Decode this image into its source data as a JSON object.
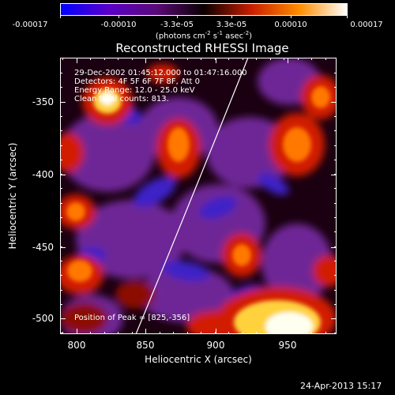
{
  "colorbar": {
    "tick_labels": [
      "-0.00017",
      "-0.00010",
      "-3.3e-05",
      "3.3e-05",
      "0.00010",
      "0.00017"
    ],
    "units_prefix": "(photons cm",
    "units_exp1": "-2",
    "units_mid1": " s",
    "units_exp2": "-1",
    "units_mid2": " asec",
    "units_exp3": "-2",
    "units_suffix": ")",
    "colors": [
      "#0000ff",
      "#5a00c8",
      "#5a0a78",
      "#0a0000",
      "#c81e00",
      "#ff8c00",
      "#ffffff"
    ]
  },
  "plot": {
    "title": "Reconstructed RHESSI Image",
    "info_lines": [
      "29-Dec-2002 01:45:12.000 to 01:47:16.000",
      "Detectors: 4F 5F 6F 7F 8F, Att 0",
      "Energy Range: 12.0 - 25.0 keV",
      "Clean      total counts: 813."
    ],
    "peak_label": "Position of Peak = [825,-356]",
    "xlabel": "Heliocentric X (arcsec)",
    "ylabel": "Heliocentric Y (arcsec)",
    "xticks": [
      "800",
      "850",
      "900",
      "950"
    ],
    "yticks": [
      "-350",
      "-400",
      "-450",
      "-500"
    ],
    "xlim": [
      790,
      980
    ],
    "ylim": [
      -515,
      -325
    ],
    "palette": {
      "background": "#1a0010",
      "blue": "#3c23c8",
      "purple": "#6e2896",
      "dark_red": "#8c0a00",
      "red": "#d21e00",
      "orange": "#ff7800",
      "yellow": "#ffd23c",
      "white": "#fffff0"
    }
  },
  "footer": {
    "timestamp": "24-Apr-2013 15:17"
  }
}
